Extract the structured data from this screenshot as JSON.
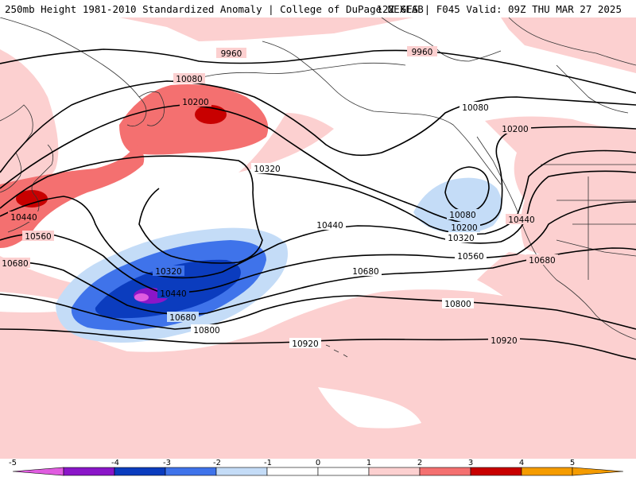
{
  "header": {
    "title_left": "250mb Height 1981-2010 Standardized Anomaly | College of DuPage NEXLAB",
    "title_right": "12Z GFS | F045 Valid: 09Z THU MAR 27 2025"
  },
  "colors": {
    "neg5": "#e05ce0",
    "neg4": "#8a16c8",
    "neg3": "#0b3cbe",
    "neg2": "#3f73ea",
    "neg1": "#c4dcf7",
    "zero": "#ffffff",
    "pos1": "#fcd0d0",
    "pos2": "#f47070",
    "pos3": "#c80000",
    "pos4": "#f59c00",
    "contour": "#000000",
    "coast": "#333333"
  },
  "contour_labels": [
    {
      "id": "9960-a",
      "text": "9960"
    },
    {
      "id": "9960-b",
      "text": "9960"
    },
    {
      "id": "10080-a",
      "text": "10080"
    },
    {
      "id": "10080-b",
      "text": "10080"
    },
    {
      "id": "10080-c",
      "text": "10080"
    },
    {
      "id": "10200-a",
      "text": "10200"
    },
    {
      "id": "10200-b",
      "text": "10200"
    },
    {
      "id": "10200-c",
      "text": "10200"
    },
    {
      "id": "10320-a",
      "text": "10320"
    },
    {
      "id": "10320-b",
      "text": "10320"
    },
    {
      "id": "10320-c",
      "text": "10320"
    },
    {
      "id": "10440-a",
      "text": "10440"
    },
    {
      "id": "10440-b",
      "text": "10440"
    },
    {
      "id": "10440-c",
      "text": "10440"
    },
    {
      "id": "10440-d",
      "text": "10440"
    },
    {
      "id": "10560-a",
      "text": "10560"
    },
    {
      "id": "10560-b",
      "text": "10560"
    },
    {
      "id": "10680-a",
      "text": "10680"
    },
    {
      "id": "10680-b",
      "text": "10680"
    },
    {
      "id": "10680-c",
      "text": "10680"
    },
    {
      "id": "10680-d",
      "text": "10680"
    },
    {
      "id": "10800-a",
      "text": "10800"
    },
    {
      "id": "10800-b",
      "text": "10800"
    },
    {
      "id": "10920-a",
      "text": "10920"
    },
    {
      "id": "10920-b",
      "text": "10920"
    }
  ],
  "legend": {
    "ticks": [
      "-5",
      "-4",
      "-3",
      "-2",
      "-1",
      "0",
      "1",
      "2",
      "3",
      "4",
      "5"
    ]
  }
}
